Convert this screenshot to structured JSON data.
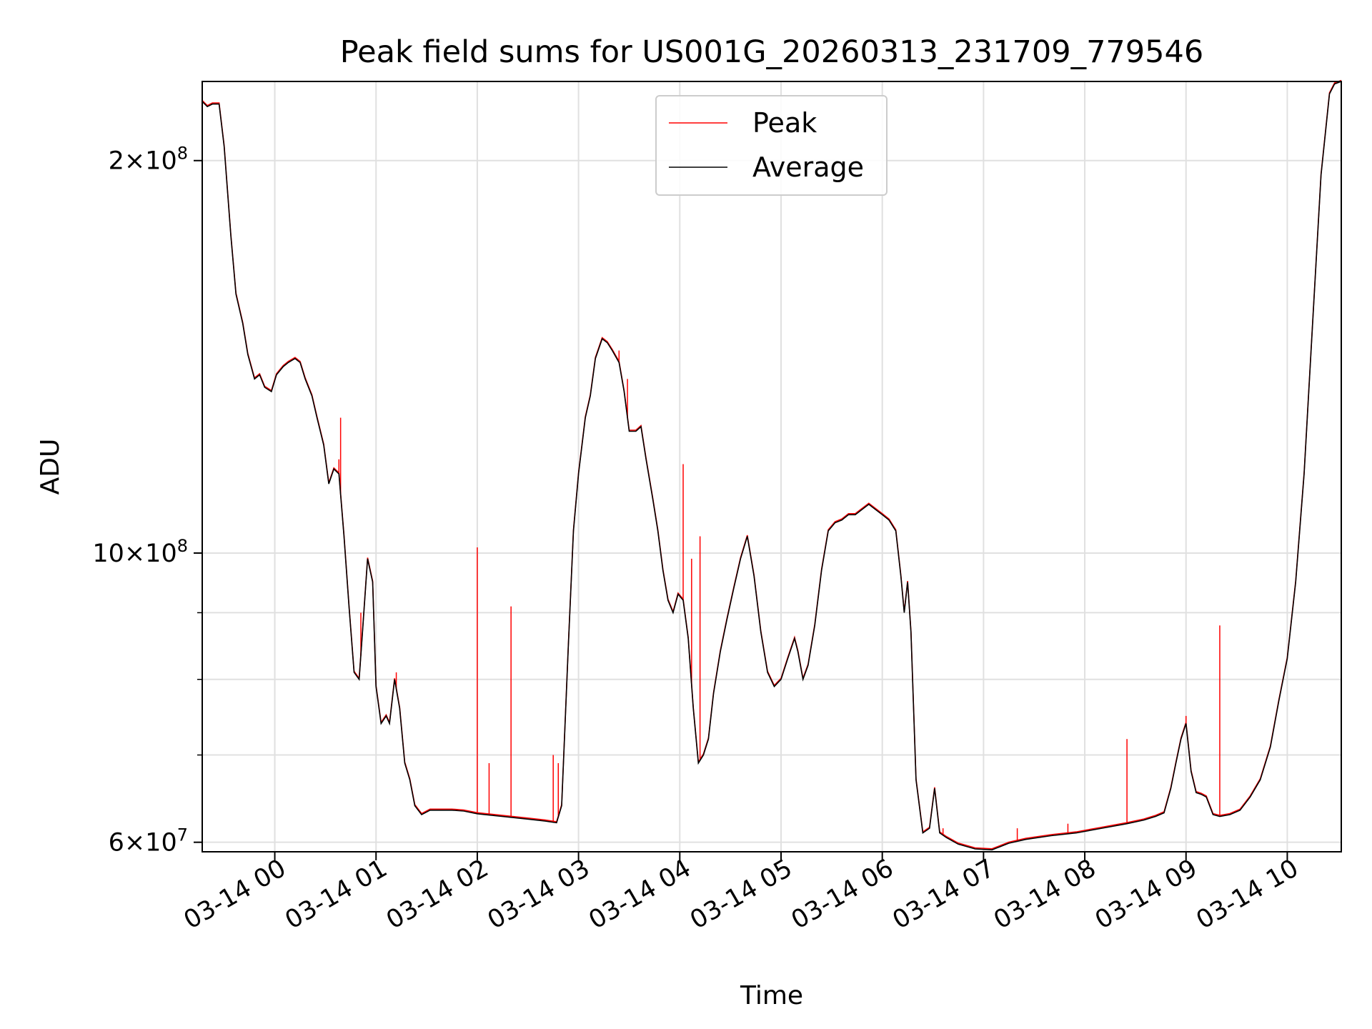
{
  "chart_data": {
    "type": "line",
    "title": "Peak field sums for US001G_20260313_231709_779546",
    "xlabel": "Time",
    "ylabel": "ADU",
    "x_tick_labels": [
      "03-14 00",
      "03-14 01",
      "03-14 02",
      "03-14 03",
      "03-14 04",
      "03-14 05",
      "03-14 06",
      "03-14 07",
      "03-14 08",
      "03-14 09",
      "03-14 10"
    ],
    "y_tick_labels": [
      {
        "text_mantissa": "2",
        "text_exp": "8",
        "value": 200000000
      },
      {
        "text_mantissa": "10",
        "text_exp": "8",
        "value": 100000000
      },
      {
        "text_mantissa": "6",
        "text_exp": "7",
        "value": 60000000
      }
    ],
    "y_scale": "log",
    "ylim": [
      59000000,
      230000000
    ],
    "xlim": [
      "2026-03-13 23:17",
      "2026-03-14 10:32"
    ],
    "grid": true,
    "legend_position": "top-center",
    "colors": {
      "peak": "#ff0000",
      "average": "#000000"
    },
    "series": [
      {
        "name": "Average",
        "color": "#000000",
        "points": [
          [
            "2026-03-13 23:17",
            222000000
          ],
          [
            "2026-03-13 23:20",
            220000000
          ],
          [
            "2026-03-13 23:23",
            221000000
          ],
          [
            "2026-03-13 23:27",
            221000000
          ],
          [
            "2026-03-13 23:30",
            205000000
          ],
          [
            "2026-03-13 23:34",
            175000000
          ],
          [
            "2026-03-13 23:37",
            158000000
          ],
          [
            "2026-03-13 23:41",
            150000000
          ],
          [
            "2026-03-13 23:44",
            142000000
          ],
          [
            "2026-03-13 23:48",
            136000000
          ],
          [
            "2026-03-13 23:51",
            137000000
          ],
          [
            "2026-03-13 23:54",
            134000000
          ],
          [
            "2026-03-13 23:58",
            133000000
          ],
          [
            "2026-03-14 00:01",
            137000000
          ],
          [
            "2026-03-14 00:05",
            139000000
          ],
          [
            "2026-03-14 00:08",
            140000000
          ],
          [
            "2026-03-14 00:12",
            141000000
          ],
          [
            "2026-03-14 00:15",
            140000000
          ],
          [
            "2026-03-14 00:18",
            136000000
          ],
          [
            "2026-03-14 00:22",
            132000000
          ],
          [
            "2026-03-14 00:25",
            127000000
          ],
          [
            "2026-03-14 00:29",
            121000000
          ],
          [
            "2026-03-14 00:32",
            113000000
          ],
          [
            "2026-03-14 00:35",
            116000000
          ],
          [
            "2026-03-14 00:38",
            115000000
          ],
          [
            "2026-03-14 00:41",
            103000000
          ],
          [
            "2026-03-14 00:44",
            91000000
          ],
          [
            "2026-03-14 00:47",
            81000000
          ],
          [
            "2026-03-14 00:50",
            80000000
          ],
          [
            "2026-03-14 00:52",
            87000000
          ],
          [
            "2026-03-14 00:55",
            99000000
          ],
          [
            "2026-03-14 00:58",
            95000000
          ],
          [
            "2026-03-14 01:00",
            79000000
          ],
          [
            "2026-03-14 01:03",
            74000000
          ],
          [
            "2026-03-14 01:06",
            75000000
          ],
          [
            "2026-03-14 01:08",
            74000000
          ],
          [
            "2026-03-14 01:11",
            80000000
          ],
          [
            "2026-03-14 01:14",
            76000000
          ],
          [
            "2026-03-14 01:17",
            69000000
          ],
          [
            "2026-03-14 01:20",
            67000000
          ],
          [
            "2026-03-14 01:23",
            64000000
          ],
          [
            "2026-03-14 01:27",
            63000000
          ],
          [
            "2026-03-14 01:32",
            63500000
          ],
          [
            "2026-03-14 01:38",
            63500000
          ],
          [
            "2026-03-14 01:45",
            63500000
          ],
          [
            "2026-03-14 01:52",
            63400000
          ],
          [
            "2026-03-14 02:00",
            63100000
          ],
          [
            "2026-03-14 02:10",
            62900000
          ],
          [
            "2026-03-14 02:20",
            62700000
          ],
          [
            "2026-03-14 02:30",
            62500000
          ],
          [
            "2026-03-14 02:40",
            62300000
          ],
          [
            "2026-03-14 02:47",
            62100000
          ],
          [
            "2026-03-14 02:50",
            64000000
          ],
          [
            "2026-03-14 02:54",
            85000000
          ],
          [
            "2026-03-14 02:57",
            104000000
          ],
          [
            "2026-03-14 03:00",
            115000000
          ],
          [
            "2026-03-14 03:04",
            127000000
          ],
          [
            "2026-03-14 03:07",
            132000000
          ],
          [
            "2026-03-14 03:10",
            141000000
          ],
          [
            "2026-03-14 03:14",
            146000000
          ],
          [
            "2026-03-14 03:17",
            145000000
          ],
          [
            "2026-03-14 03:20",
            143000000
          ],
          [
            "2026-03-14 03:24",
            140000000
          ],
          [
            "2026-03-14 03:27",
            133000000
          ],
          [
            "2026-03-14 03:30",
            124000000
          ],
          [
            "2026-03-14 03:34",
            124000000
          ],
          [
            "2026-03-14 03:37",
            125000000
          ],
          [
            "2026-03-14 03:40",
            118000000
          ],
          [
            "2026-03-14 03:44",
            110000000
          ],
          [
            "2026-03-14 03:47",
            104000000
          ],
          [
            "2026-03-14 03:50",
            97000000
          ],
          [
            "2026-03-14 03:53",
            92000000
          ],
          [
            "2026-03-14 03:56",
            90000000
          ],
          [
            "2026-03-14 03:59",
            93000000
          ],
          [
            "2026-03-14 04:02",
            92000000
          ],
          [
            "2026-03-14 04:05",
            86000000
          ],
          [
            "2026-03-14 04:08",
            76000000
          ],
          [
            "2026-03-14 04:11",
            69000000
          ],
          [
            "2026-03-14 04:14",
            70000000
          ],
          [
            "2026-03-14 04:17",
            72000000
          ],
          [
            "2026-03-14 04:20",
            78000000
          ],
          [
            "2026-03-14 04:24",
            84000000
          ],
          [
            "2026-03-14 04:28",
            89000000
          ],
          [
            "2026-03-14 04:32",
            94000000
          ],
          [
            "2026-03-14 04:36",
            99000000
          ],
          [
            "2026-03-14 04:40",
            103000000
          ],
          [
            "2026-03-14 04:44",
            96000000
          ],
          [
            "2026-03-14 04:48",
            87000000
          ],
          [
            "2026-03-14 04:52",
            81000000
          ],
          [
            "2026-03-14 04:56",
            79000000
          ],
          [
            "2026-03-14 05:00",
            80000000
          ],
          [
            "2026-03-14 05:04",
            83000000
          ],
          [
            "2026-03-14 05:08",
            86000000
          ],
          [
            "2026-03-14 05:10",
            84000000
          ],
          [
            "2026-03-14 05:13",
            80000000
          ],
          [
            "2026-03-14 05:16",
            82000000
          ],
          [
            "2026-03-14 05:20",
            88000000
          ],
          [
            "2026-03-14 05:24",
            97000000
          ],
          [
            "2026-03-14 05:28",
            104000000
          ],
          [
            "2026-03-14 05:32",
            105500000
          ],
          [
            "2026-03-14 05:36",
            106000000
          ],
          [
            "2026-03-14 05:40",
            107000000
          ],
          [
            "2026-03-14 05:44",
            107000000
          ],
          [
            "2026-03-14 05:48",
            108000000
          ],
          [
            "2026-03-14 05:52",
            109000000
          ],
          [
            "2026-03-14 05:56",
            108000000
          ],
          [
            "2026-03-14 06:00",
            107000000
          ],
          [
            "2026-03-14 06:04",
            106000000
          ],
          [
            "2026-03-14 06:08",
            104000000
          ],
          [
            "2026-03-14 06:11",
            96000000
          ],
          [
            "2026-03-14 06:13",
            90000000
          ],
          [
            "2026-03-14 06:15",
            95000000
          ],
          [
            "2026-03-14 06:17",
            87000000
          ],
          [
            "2026-03-14 06:20",
            67000000
          ],
          [
            "2026-03-14 06:24",
            61000000
          ],
          [
            "2026-03-14 06:28",
            61500000
          ],
          [
            "2026-03-14 06:31",
            66000000
          ],
          [
            "2026-03-14 06:34",
            61000000
          ],
          [
            "2026-03-14 06:38",
            60500000
          ],
          [
            "2026-03-14 06:45",
            59800000
          ],
          [
            "2026-03-14 06:55",
            59300000
          ],
          [
            "2026-03-14 07:05",
            59200000
          ],
          [
            "2026-03-14 07:15",
            59900000
          ],
          [
            "2026-03-14 07:25",
            60300000
          ],
          [
            "2026-03-14 07:40",
            60700000
          ],
          [
            "2026-03-14 07:55",
            61000000
          ],
          [
            "2026-03-14 08:10",
            61500000
          ],
          [
            "2026-03-14 08:25",
            62000000
          ],
          [
            "2026-03-14 08:35",
            62400000
          ],
          [
            "2026-03-14 08:42",
            62800000
          ],
          [
            "2026-03-14 08:47",
            63200000
          ],
          [
            "2026-03-14 08:51",
            66000000
          ],
          [
            "2026-03-14 08:54",
            69000000
          ],
          [
            "2026-03-14 08:57",
            72000000
          ],
          [
            "2026-03-14 09:00",
            74000000
          ],
          [
            "2026-03-14 09:03",
            68000000
          ],
          [
            "2026-03-14 09:06",
            65500000
          ],
          [
            "2026-03-14 09:09",
            65300000
          ],
          [
            "2026-03-14 09:12",
            65000000
          ],
          [
            "2026-03-14 09:16",
            63000000
          ],
          [
            "2026-03-14 09:20",
            62800000
          ],
          [
            "2026-03-14 09:26",
            63000000
          ],
          [
            "2026-03-14 09:32",
            63500000
          ],
          [
            "2026-03-14 09:38",
            65000000
          ],
          [
            "2026-03-14 09:44",
            67000000
          ],
          [
            "2026-03-14 09:50",
            71000000
          ],
          [
            "2026-03-14 09:55",
            77000000
          ],
          [
            "2026-03-14 10:00",
            83000000
          ],
          [
            "2026-03-14 10:05",
            95000000
          ],
          [
            "2026-03-14 10:10",
            115000000
          ],
          [
            "2026-03-14 10:15",
            150000000
          ],
          [
            "2026-03-14 10:20",
            195000000
          ],
          [
            "2026-03-14 10:25",
            225000000
          ],
          [
            "2026-03-14 10:28",
            229000000
          ],
          [
            "2026-03-14 10:32",
            230000000
          ]
        ]
      },
      {
        "name": "Peak",
        "color": "#ff0000",
        "spikes": [
          [
            "2026-03-14 00:39",
            127000000
          ],
          [
            "2026-03-14 00:38",
            118000000
          ],
          [
            "2026-03-14 00:51",
            90000000
          ],
          [
            "2026-03-14 01:12",
            81000000
          ],
          [
            "2026-03-14 02:00",
            101000000
          ],
          [
            "2026-03-14 02:07",
            69000000
          ],
          [
            "2026-03-14 02:20",
            91000000
          ],
          [
            "2026-03-14 02:45",
            70000000
          ],
          [
            "2026-03-14 02:48",
            69000000
          ],
          [
            "2026-03-14 03:24",
            143000000
          ],
          [
            "2026-03-14 03:29",
            136000000
          ],
          [
            "2026-03-14 04:02",
            117000000
          ],
          [
            "2026-03-14 04:07",
            99000000
          ],
          [
            "2026-03-14 04:12",
            103000000
          ],
          [
            "2026-03-14 08:25",
            72000000
          ],
          [
            "2026-03-14 09:20",
            88000000
          ],
          [
            "2026-03-14 09:00",
            75000000
          ],
          [
            "2026-03-14 06:36",
            61500000
          ],
          [
            "2026-03-14 07:20",
            61500000
          ],
          [
            "2026-03-14 07:50",
            62000000
          ]
        ]
      }
    ]
  }
}
